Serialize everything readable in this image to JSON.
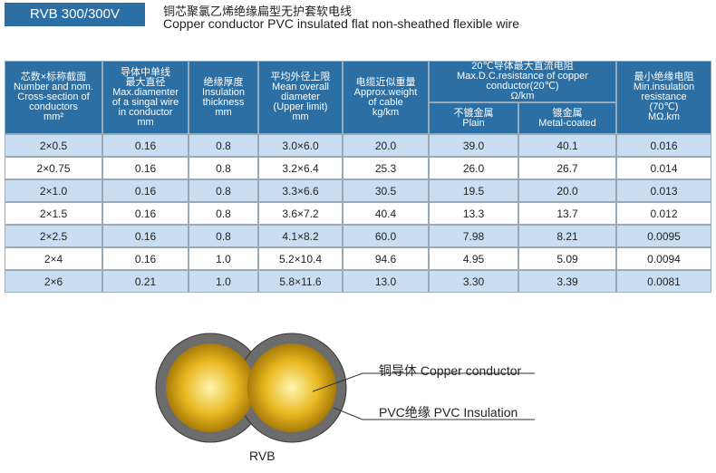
{
  "header": {
    "badge": "RVB 300/300V",
    "title_cn": "铜芯聚氯乙烯绝缘扁型无护套软电线",
    "title_en": "Copper conductor PVC insulated flat non-sheathed flexible wire"
  },
  "table": {
    "headers": [
      [
        "芯数×标称截面",
        "Number and nom.",
        "Cross-section of",
        "conductors",
        "mm²"
      ],
      [
        "导体中单线",
        "最大直径",
        "Max.diamenter",
        "of a singal wire",
        "in conductor",
        "mm"
      ],
      [
        "绝缘厚度",
        "Insulation",
        "thickness",
        "mm"
      ],
      [
        "平均外径上限",
        "Mean overall",
        "diameter",
        "(Upper limit)",
        "mm"
      ],
      [
        "电缆近似重量",
        "Approx.weight",
        "of cable",
        "kg/km"
      ],
      [
        "最小绝缘电阻",
        "Min.insulation",
        "resistance",
        "(70℃)",
        "MΩ.km"
      ]
    ],
    "group_header": [
      "20℃导体最大直流电阻",
      "Max.D.C.resistance of copper conductor(20℃)",
      "Ω/km"
    ],
    "sub_headers": [
      [
        "不镀金属",
        "Plain"
      ],
      [
        "镀金属",
        "Metal-coated"
      ]
    ],
    "rows": [
      [
        "2×0.5",
        "0.16",
        "0.8",
        "3.0×6.0",
        "20.0",
        "39.0",
        "40.1",
        "0.016"
      ],
      [
        "2×0.75",
        "0.16",
        "0.8",
        "3.2×6.4",
        "25.3",
        "26.0",
        "26.7",
        "0.014"
      ],
      [
        "2×1.0",
        "0.16",
        "0.8",
        "3.3×6.6",
        "30.5",
        "19.5",
        "20.0",
        "0.013"
      ],
      [
        "2×1.5",
        "0.16",
        "0.8",
        "3.6×7.2",
        "40.4",
        "13.3",
        "13.7",
        "0.012"
      ],
      [
        "2×2.5",
        "0.16",
        "0.8",
        "4.1×8.2",
        "60.0",
        "7.98",
        "8.21",
        "0.0095"
      ],
      [
        "2×4",
        "0.16",
        "1.0",
        "5.2×10.4",
        "94.6",
        "4.95",
        "5.09",
        "0.0094"
      ],
      [
        "2×6",
        "0.21",
        "1.0",
        "5.8×11.6",
        "13.0",
        "3.30",
        "3.39",
        "0.0081"
      ]
    ]
  },
  "diagram": {
    "conductor_label": "铜导体 Copper conductor",
    "insulation_label": "PVC绝缘  PVC Insulation",
    "caption": "RVB"
  }
}
